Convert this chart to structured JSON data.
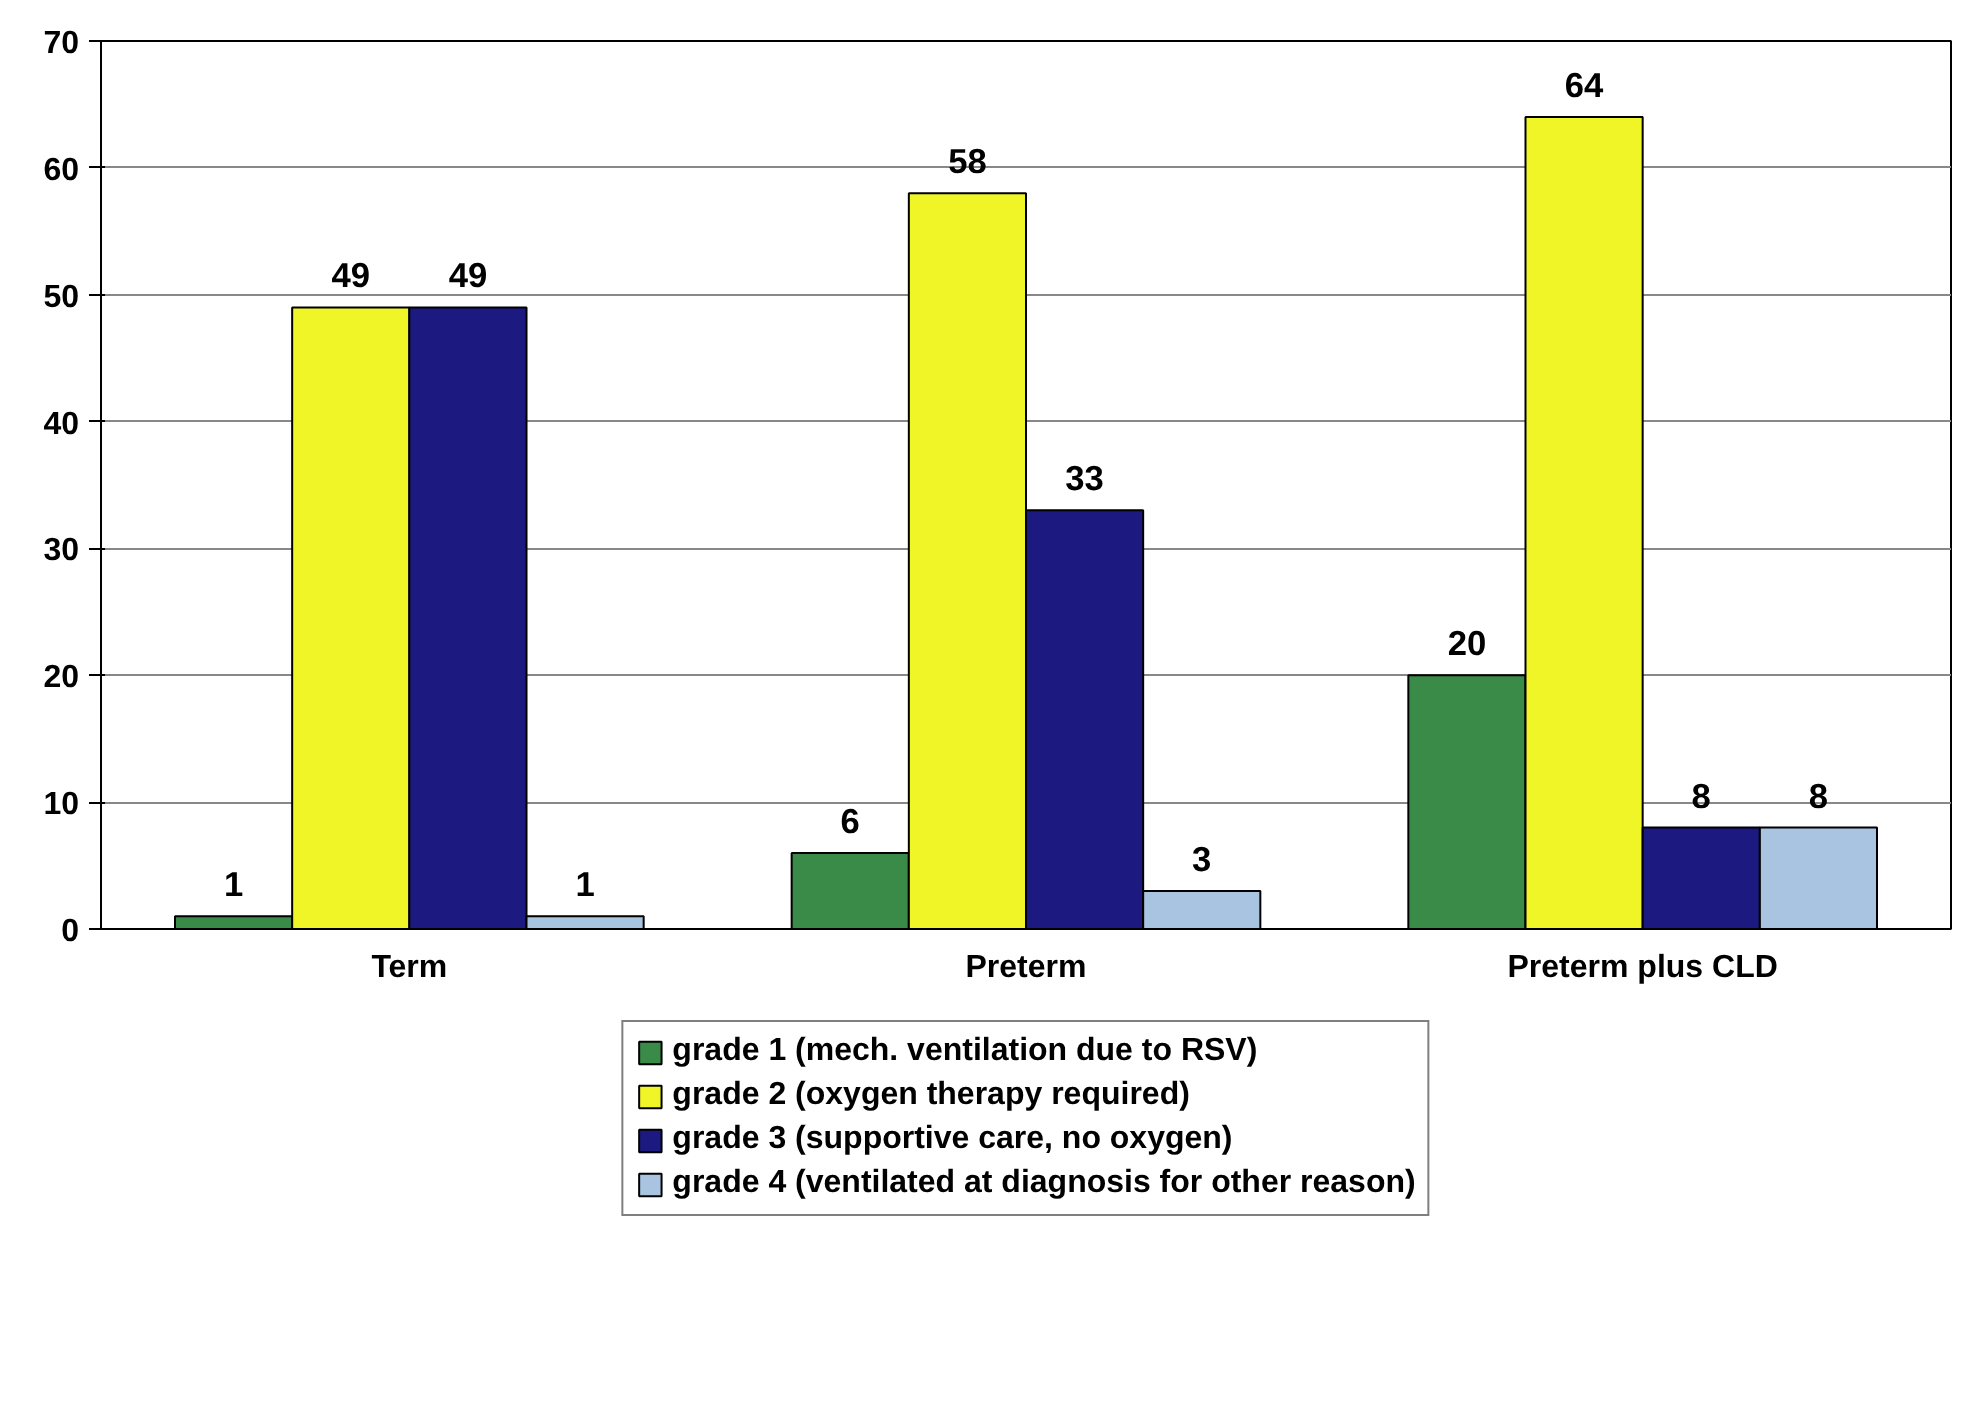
{
  "chart_data": {
    "type": "bar",
    "categories": [
      "Term",
      "Preterm",
      "Preterm plus CLD"
    ],
    "series": [
      {
        "name": "grade 1 (mech. ventilation due to RSV)",
        "color": "#3a8a48",
        "values": [
          1,
          6,
          20
        ]
      },
      {
        "name": "grade 2 (oxygen therapy required)",
        "color": "#f0f528",
        "values": [
          49,
          58,
          64
        ]
      },
      {
        "name": "grade 3 (supportive care, no oxygen)",
        "color": "#1c1a80",
        "values": [
          49,
          33,
          8
        ]
      },
      {
        "name": "grade 4 (ventilated at diagnosis for other reason)",
        "color": "#a8c4e0",
        "values": [
          1,
          3,
          8
        ]
      }
    ],
    "ylim": [
      0,
      70
    ],
    "yticks": [
      0,
      10,
      20,
      30,
      40,
      50,
      60,
      70
    ],
    "grid": "y",
    "legend": "bottom",
    "data_labels": true
  }
}
